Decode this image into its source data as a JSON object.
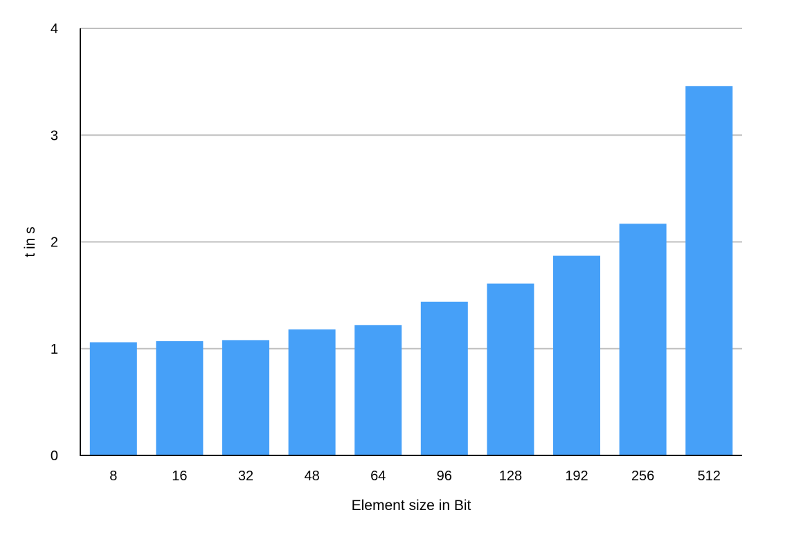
{
  "chart_data": {
    "type": "bar",
    "title": "",
    "xlabel": "Element size in Bit",
    "ylabel": "t in s",
    "categories": [
      "8",
      "16",
      "32",
      "48",
      "64",
      "96",
      "128",
      "192",
      "256",
      "512"
    ],
    "values": [
      1.06,
      1.07,
      1.08,
      1.18,
      1.22,
      1.44,
      1.61,
      1.87,
      2.17,
      3.46
    ],
    "ylim": [
      0,
      4
    ],
    "yticks": [
      "0",
      "1",
      "2",
      "3",
      "4"
    ],
    "grid": "horizontal",
    "legend": "none",
    "colors": {
      "bar": "#46a0f8",
      "grid": "#bfbfbf",
      "axis": "#000000"
    }
  }
}
